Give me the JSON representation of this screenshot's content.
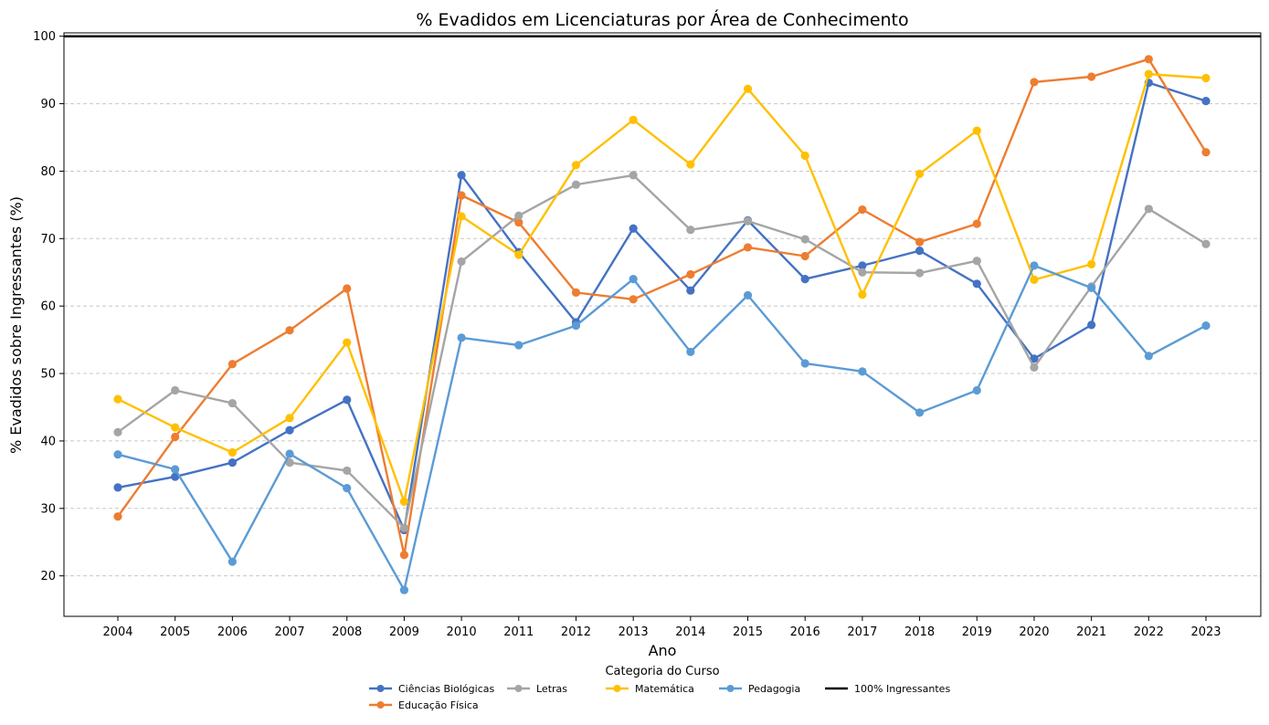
{
  "chart_data": {
    "type": "line",
    "title": "% Evadidos em Licenciaturas por Área de Conhecimento",
    "xlabel": "Ano",
    "ylabel": "% Evadidos sobre Ingressantes (%)",
    "ylim": [
      14,
      100.5
    ],
    "yticks": [
      20,
      30,
      40,
      50,
      60,
      70,
      80,
      90,
      100
    ],
    "grid": "horizontal dashed",
    "legend_title": "Categoria do Curso",
    "legend_placement": "bottom-center",
    "categories": [
      "2004",
      "2005",
      "2006",
      "2007",
      "2008",
      "2009",
      "2010",
      "2011",
      "2012",
      "2013",
      "2014",
      "2015",
      "2016",
      "2017",
      "2018",
      "2019",
      "2020",
      "2021",
      "2022",
      "2023"
    ],
    "series": [
      {
        "name": "Ciências Biológicas",
        "color": "#4472C4",
        "values": [
          33.1,
          34.7,
          36.8,
          41.6,
          46.1,
          26.8,
          79.4,
          68.0,
          57.6,
          71.5,
          62.3,
          72.7,
          64.0,
          66.0,
          68.2,
          63.3,
          52.2,
          57.2,
          93.1,
          90.4
        ]
      },
      {
        "name": "Educação Física",
        "color": "#ED7D31",
        "values": [
          28.8,
          40.6,
          51.4,
          56.4,
          62.6,
          23.1,
          76.4,
          72.4,
          62.0,
          61.0,
          64.7,
          68.7,
          67.4,
          74.3,
          69.5,
          72.2,
          93.2,
          94.0,
          96.6,
          82.8
        ]
      },
      {
        "name": "Letras",
        "color": "#A5A5A5",
        "values": [
          41.3,
          47.5,
          45.6,
          36.8,
          35.6,
          27.1,
          66.6,
          73.4,
          78.0,
          79.4,
          71.3,
          72.6,
          69.9,
          65.0,
          64.9,
          66.7,
          50.9,
          62.9,
          74.4,
          69.2
        ]
      },
      {
        "name": "Matemática",
        "color": "#FFC000",
        "values": [
          46.2,
          42.0,
          38.3,
          43.4,
          54.6,
          31.0,
          73.3,
          67.6,
          80.9,
          87.6,
          81.0,
          92.2,
          82.3,
          61.7,
          79.6,
          86.0,
          63.9,
          66.2,
          94.4,
          93.8
        ]
      },
      {
        "name": "Pedagogia",
        "color": "#5B9BD5",
        "values": [
          38.0,
          35.8,
          22.1,
          38.1,
          33.0,
          17.9,
          55.3,
          54.2,
          57.1,
          64.0,
          53.2,
          61.6,
          51.5,
          50.3,
          44.2,
          47.5,
          66.0,
          62.7,
          52.6,
          57.1
        ]
      }
    ],
    "reference_line": {
      "name": "100% Ingressantes",
      "value": 100,
      "color": "#000000"
    }
  }
}
